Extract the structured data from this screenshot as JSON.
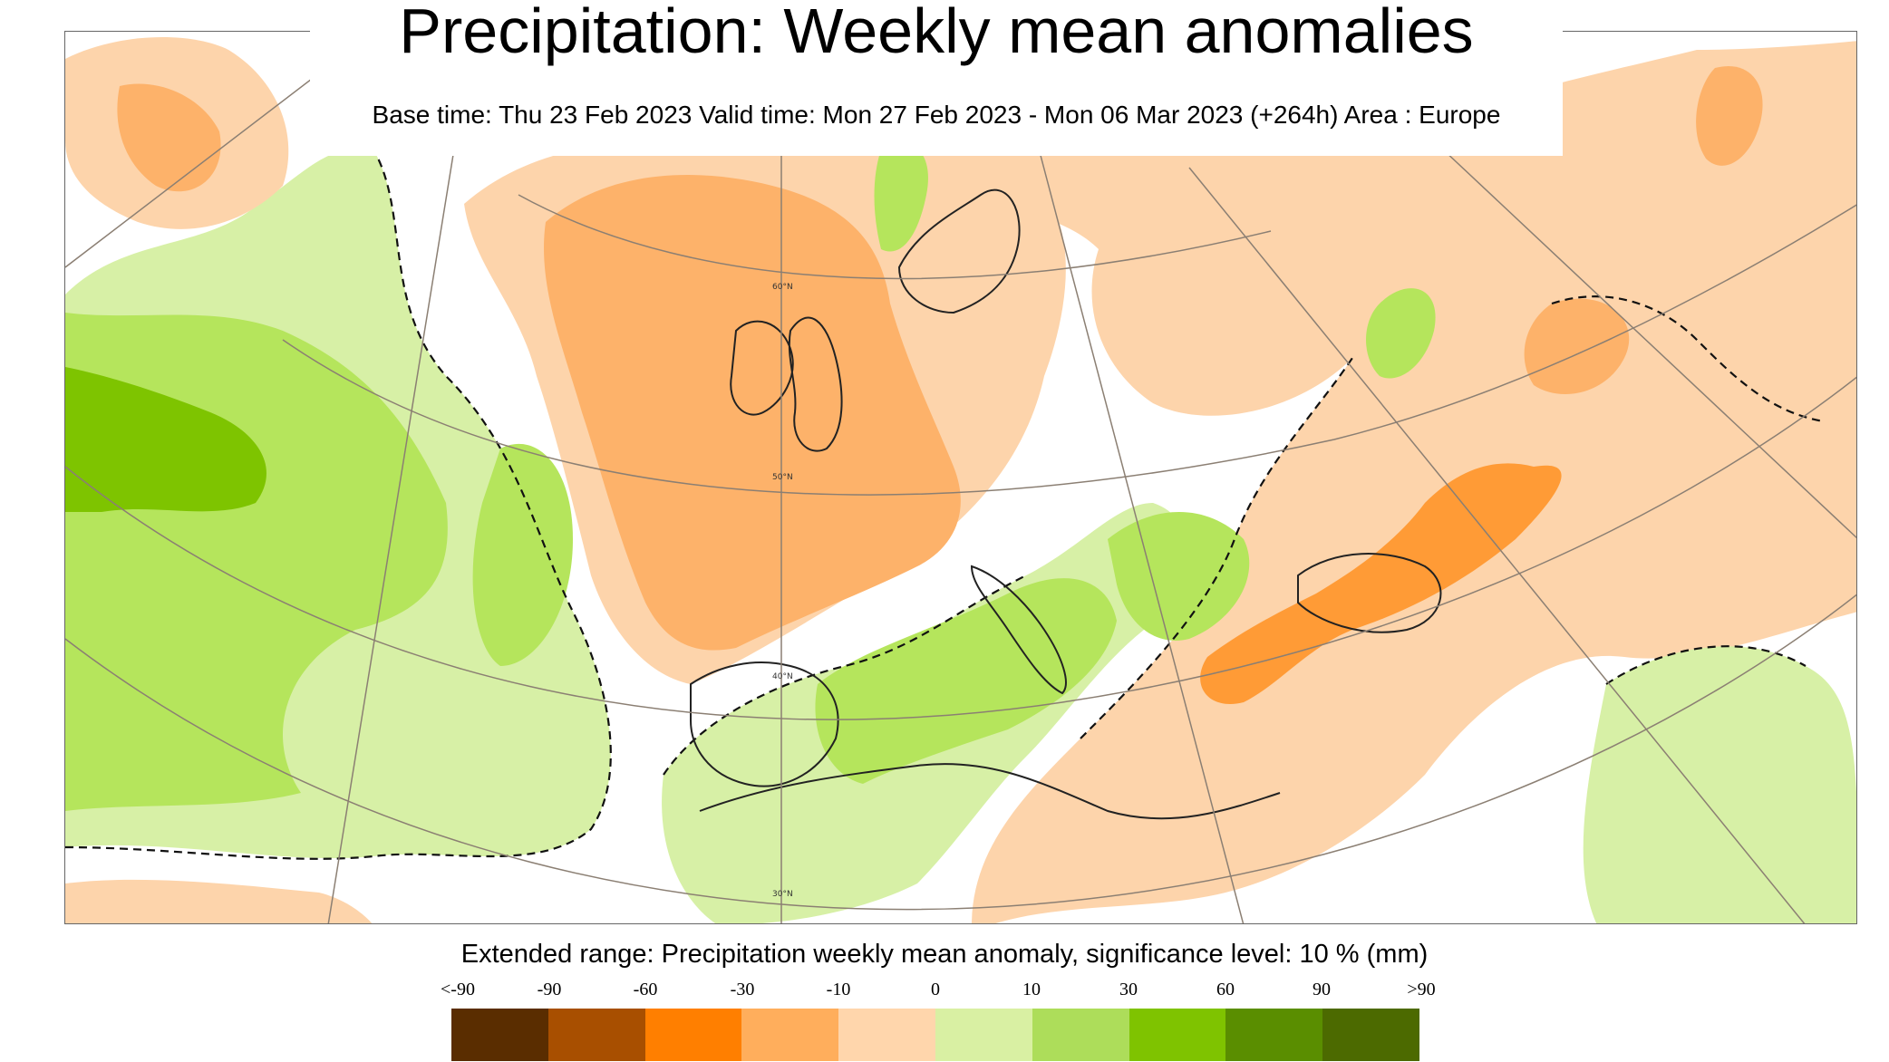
{
  "title": "Precipitation: Weekly mean anomalies",
  "subtitle": "Base time: Thu 23 Feb 2023 Valid time: Mon 27 Feb 2023 - Mon 06 Mar 2023 (+264h) Area : Europe",
  "map": {
    "area": "Europe",
    "latitude_labels": [
      "60°N",
      "50°N",
      "40°N",
      "30°N"
    ],
    "colors": {
      "strong_green": "#7ec400",
      "green": "#b5e55c",
      "light_green": "#d7f0a6",
      "strong_orange": "#ff8c19",
      "orange": "#fdb26a",
      "light_orange": "#fdd4ab",
      "coast": "#222222",
      "graticule": "#8b7f73"
    }
  },
  "legend": {
    "title": "Extended range: Precipitation weekly mean anomaly, significance level: 10 % (mm)",
    "labels": [
      "<-90",
      "-90",
      "-60",
      "-30",
      "-10",
      "0",
      "10",
      "30",
      "60",
      "90",
      ">90"
    ],
    "colors": [
      "#5a2d00",
      "#a84f00",
      "#ff7f00",
      "#ffae5c",
      "#ffd6ac",
      "#d9f0a3",
      "#addd5a",
      "#7fc300",
      "#5a8e00",
      "#4c6a00"
    ]
  }
}
